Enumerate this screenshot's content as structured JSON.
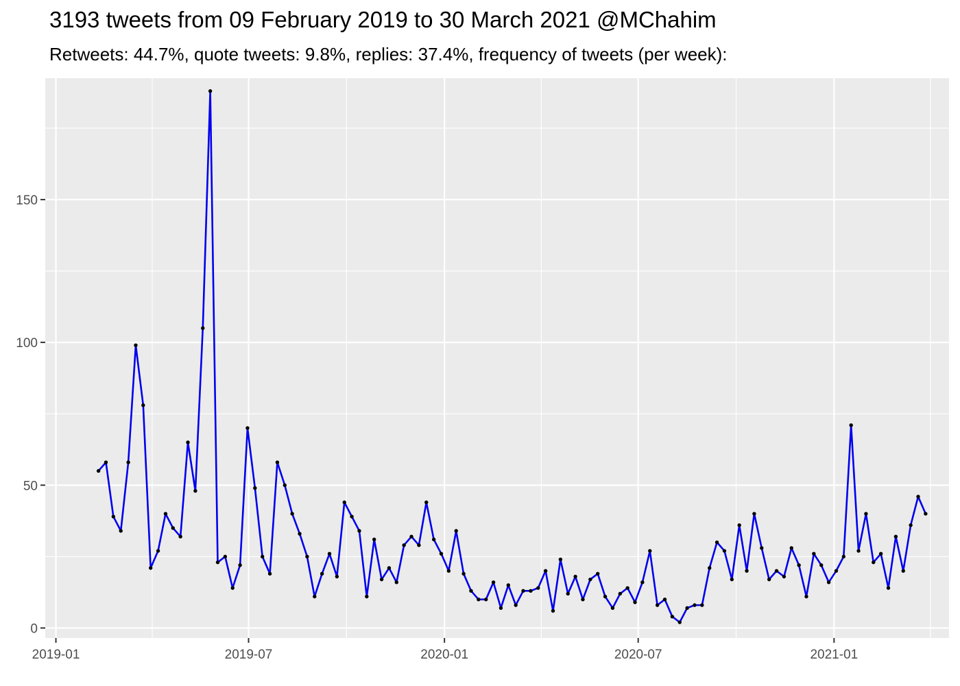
{
  "chart_data": {
    "type": "line",
    "title": "3193 tweets from 09 February 2019 to 30 March 2021 @MChahim",
    "subtitle": "Retweets: 44.7%, quote tweets: 9.8%, replies: 37.4%, frequency of tweets (per week):",
    "xlabel": "",
    "ylabel": "",
    "x_ticks": [
      "2019-01",
      "2019-07",
      "2020-01",
      "2020-07",
      "2021-01"
    ],
    "y_ticks": [
      0,
      50,
      100,
      150
    ],
    "ylim": [
      -3.5,
      192.5
    ],
    "xlim": [
      "2018-12-22",
      "2021-04-19"
    ],
    "grid": true,
    "line_color": "#0000ee",
    "point_color": "#000000",
    "panel_background": "#ebebeb",
    "series": [
      {
        "x": [
          "2019-02-10",
          "2019-02-17",
          "2019-02-24",
          "2019-03-03",
          "2019-03-10",
          "2019-03-17",
          "2019-03-24",
          "2019-03-31",
          "2019-04-07",
          "2019-04-14",
          "2019-04-21",
          "2019-04-28",
          "2019-05-05",
          "2019-05-12",
          "2019-05-19",
          "2019-05-26",
          "2019-06-02",
          "2019-06-09",
          "2019-06-16",
          "2019-06-23",
          "2019-06-30",
          "2019-07-07",
          "2019-07-14",
          "2019-07-21",
          "2019-07-28",
          "2019-08-04",
          "2019-08-11",
          "2019-08-18",
          "2019-08-25",
          "2019-09-01",
          "2019-09-08",
          "2019-09-15",
          "2019-09-22",
          "2019-09-29",
          "2019-10-06",
          "2019-10-13",
          "2019-10-20",
          "2019-10-27",
          "2019-11-03",
          "2019-11-10",
          "2019-11-17",
          "2019-11-24",
          "2019-12-01",
          "2019-12-08",
          "2019-12-15",
          "2019-12-22",
          "2019-12-29",
          "2020-01-05",
          "2020-01-12",
          "2020-01-19",
          "2020-01-26",
          "2020-02-02",
          "2020-02-09",
          "2020-02-16",
          "2020-02-23",
          "2020-03-01",
          "2020-03-08",
          "2020-03-15",
          "2020-03-22",
          "2020-03-29",
          "2020-04-05",
          "2020-04-12",
          "2020-04-19",
          "2020-04-26",
          "2020-05-03",
          "2020-05-10",
          "2020-05-17",
          "2020-05-24",
          "2020-05-31",
          "2020-06-07",
          "2020-06-14",
          "2020-06-21",
          "2020-06-28",
          "2020-07-05",
          "2020-07-12",
          "2020-07-19",
          "2020-07-26",
          "2020-08-02",
          "2020-08-09",
          "2020-08-16",
          "2020-08-23",
          "2020-08-30",
          "2020-09-06",
          "2020-09-13",
          "2020-09-20",
          "2020-09-27",
          "2020-10-04",
          "2020-10-11",
          "2020-10-18",
          "2020-10-25",
          "2020-11-01",
          "2020-11-08",
          "2020-11-15",
          "2020-11-22",
          "2020-11-29",
          "2020-12-06",
          "2020-12-13",
          "2020-12-20",
          "2020-12-27",
          "2021-01-03",
          "2021-01-10",
          "2021-01-17",
          "2021-01-24",
          "2021-01-31",
          "2021-02-07",
          "2021-02-14",
          "2021-02-21",
          "2021-02-28",
          "2021-03-07",
          "2021-03-14",
          "2021-03-21",
          "2021-03-28"
        ],
        "values": [
          55,
          58,
          39,
          34,
          58,
          99,
          78,
          21,
          27,
          40,
          35,
          32,
          65,
          48,
          105,
          188,
          23,
          25,
          14,
          22,
          70,
          49,
          25,
          19,
          58,
          50,
          40,
          33,
          25,
          11,
          19,
          26,
          18,
          44,
          39,
          34,
          11,
          31,
          17,
          21,
          16,
          29,
          32,
          29,
          44,
          31,
          26,
          20,
          34,
          19,
          13,
          10,
          10,
          16,
          7,
          15,
          8,
          13,
          13,
          14,
          20,
          6,
          24,
          12,
          18,
          10,
          17,
          19,
          11,
          7,
          12,
          14,
          9,
          16,
          27,
          8,
          10,
          4,
          2,
          7,
          8,
          8,
          21,
          30,
          27,
          17,
          36,
          20,
          40,
          28,
          17,
          20,
          18,
          28,
          22,
          11,
          26,
          22,
          16,
          20,
          25,
          71,
          27,
          40,
          23,
          26,
          14,
          32,
          20,
          36,
          46,
          40
        ]
      }
    ]
  }
}
